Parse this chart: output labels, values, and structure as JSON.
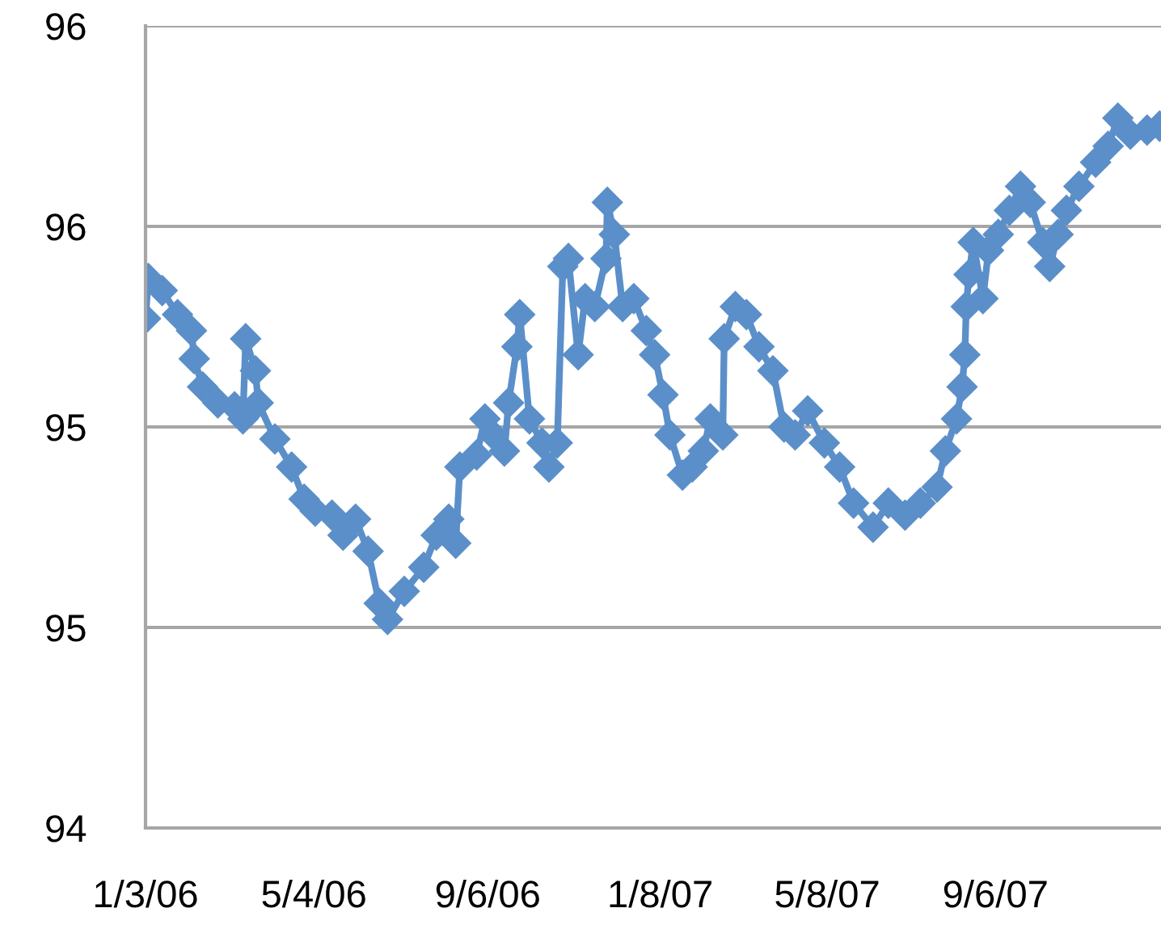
{
  "chart_data": {
    "type": "line",
    "marker": "diamond",
    "line_style": "solid",
    "grid": "y",
    "legend": false,
    "xlim": [
      "2006-01-03",
      "2008-01-03"
    ],
    "xticks": [
      {
        "value": "2006-01-03",
        "label": "1/3/06"
      },
      {
        "value": "2006-05-04",
        "label": "5/4/06"
      },
      {
        "value": "2006-09-06",
        "label": "9/6/06"
      },
      {
        "value": "2007-01-08",
        "label": "1/8/07"
      },
      {
        "value": "2007-05-08",
        "label": "5/8/07"
      },
      {
        "value": "2007-09-06",
        "label": "9/6/07"
      }
    ],
    "ylim": [
      94,
      96
    ],
    "yticks": [
      94,
      {
        "value": 94.5,
        "label": "95"
      },
      95,
      {
        "value": 95.5,
        "label": "96"
      },
      96
    ],
    "series": [
      {
        "color": "#5b8fc9",
        "x": [
          "2006-01-03",
          "2006-01-05",
          "2006-01-15",
          "2006-01-26",
          "2006-02-05",
          "2006-02-07",
          "2006-02-13",
          "2006-02-24",
          "2006-03-08",
          "2006-03-14",
          "2006-03-16",
          "2006-03-23",
          "2006-03-25",
          "2006-04-06",
          "2006-04-18",
          "2006-04-27",
          "2006-05-05",
          "2006-05-17",
          "2006-05-25",
          "2006-06-03",
          "2006-06-12",
          "2006-06-20",
          "2006-06-26",
          "2006-07-08",
          "2006-07-22",
          "2006-07-31",
          "2006-08-09",
          "2006-08-14",
          "2006-08-17",
          "2006-08-29",
          "2006-09-04",
          "2006-09-10",
          "2006-09-18",
          "2006-09-21",
          "2006-09-27",
          "2006-09-29",
          "2006-10-06",
          "2006-10-15",
          "2006-10-20",
          "2006-10-26",
          "2006-10-30",
          "2006-11-03",
          "2006-11-10",
          "2006-11-15",
          "2006-11-22",
          "2006-11-30",
          "2006-12-01",
          "2006-12-06",
          "2006-12-12",
          "2006-12-20",
          "2006-12-29",
          "2007-01-04",
          "2007-01-10",
          "2007-01-15",
          "2007-01-24",
          "2007-01-31",
          "2007-02-08",
          "2007-02-13",
          "2007-02-22",
          "2007-02-23",
          "2007-03-03",
          "2007-03-11",
          "2007-03-20",
          "2007-03-30",
          "2007-04-07",
          "2007-04-15",
          "2007-04-24",
          "2007-05-06",
          "2007-05-17",
          "2007-05-27",
          "2007-06-10",
          "2007-06-21",
          "2007-07-03",
          "2007-07-14",
          "2007-07-26",
          "2007-08-01",
          "2007-08-09",
          "2007-08-13",
          "2007-08-15",
          "2007-08-16",
          "2007-08-18",
          "2007-08-21",
          "2007-08-28",
          "2007-09-01",
          "2007-09-08",
          "2007-09-16",
          "2007-09-24",
          "2007-10-01",
          "2007-10-10",
          "2007-10-15",
          "2007-10-21",
          "2007-10-27",
          "2007-11-05",
          "2007-11-17",
          "2007-11-26",
          "2007-12-03",
          "2007-12-12",
          "2007-12-24",
          "2008-01-02"
        ],
        "values": [
          95.27,
          95.37,
          95.34,
          95.28,
          95.24,
          95.17,
          95.1,
          95.06,
          95.05,
          95.02,
          95.22,
          95.14,
          95.06,
          94.97,
          94.9,
          94.82,
          94.79,
          94.78,
          94.73,
          94.77,
          94.69,
          94.56,
          94.52,
          94.59,
          94.65,
          94.73,
          94.77,
          94.71,
          94.9,
          94.93,
          95.02,
          94.98,
          94.94,
          95.06,
          95.2,
          95.28,
          95.02,
          94.96,
          94.9,
          94.96,
          95.4,
          95.42,
          95.18,
          95.32,
          95.3,
          95.42,
          95.56,
          95.48,
          95.3,
          95.32,
          95.24,
          95.18,
          95.08,
          94.98,
          94.88,
          94.9,
          94.94,
          95.02,
          94.98,
          95.22,
          95.3,
          95.28,
          95.2,
          95.14,
          95.0,
          94.98,
          95.04,
          94.96,
          94.9,
          94.81,
          94.75,
          94.81,
          94.78,
          94.81,
          94.85,
          94.94,
          95.02,
          95.1,
          95.18,
          95.3,
          95.38,
          95.46,
          95.32,
          95.44,
          95.48,
          95.54,
          95.6,
          95.56,
          95.46,
          95.4,
          95.48,
          95.54,
          95.6,
          95.66,
          95.7,
          95.77,
          95.73,
          95.74,
          95.75
        ]
      }
    ]
  }
}
